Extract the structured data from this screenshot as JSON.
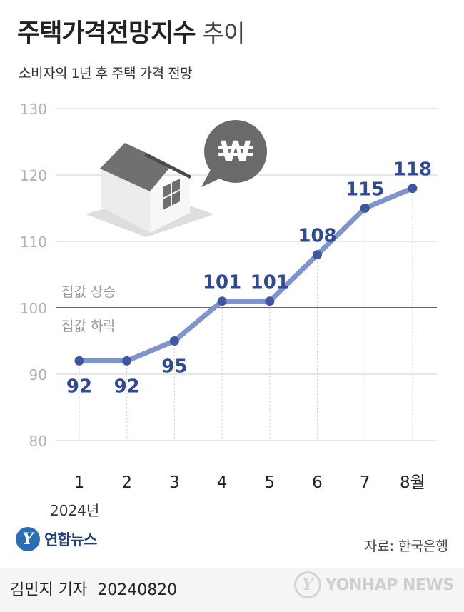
{
  "header": {
    "title": "주택가격전망지수",
    "title_suffix": "추이",
    "subtitle": "소비자의 1년 후 주택 가격 전망"
  },
  "chart_data": {
    "type": "line",
    "x": [
      1,
      2,
      3,
      4,
      5,
      6,
      7,
      8
    ],
    "x_tick_labels": [
      "1",
      "2",
      "3",
      "4",
      "5",
      "6",
      "7",
      "8월"
    ],
    "x_sub_label": "2024년",
    "values": [
      92,
      92,
      95,
      101,
      101,
      108,
      115,
      118
    ],
    "y_ticks": [
      80,
      90,
      100,
      110,
      120,
      130
    ],
    "ylim": [
      80,
      130
    ],
    "reference_line": {
      "value": 100,
      "label_above": "집값 상승",
      "label_below": "집값 하락"
    },
    "grid": true,
    "colors": {
      "line": "#7f93cf",
      "point": "#3f57a3",
      "label": "#2e4a92",
      "reference": "#333333"
    },
    "icon": "house-with-won-speech-bubble"
  },
  "footer": {
    "source": "자료: 한국은행",
    "byline": "김민지 기자",
    "date": "20240820",
    "logo_text": "연합뉴스",
    "watermark_text": "YONHAP NEWS"
  }
}
